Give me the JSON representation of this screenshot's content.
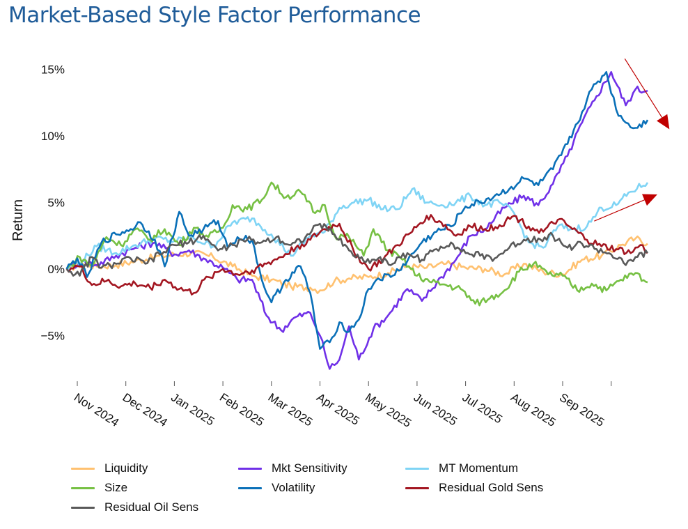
{
  "chart_data": {
    "type": "line",
    "title": "Market-Based Style Factor Performance",
    "xlabel": "",
    "ylabel": "Return",
    "ylim": [
      -8.5,
      16
    ],
    "yticks": [
      15,
      10,
      5,
      0,
      -5
    ],
    "ytick_labels": [
      "15%",
      "10%",
      "5%",
      "0%",
      "−5%"
    ],
    "xtick_labels": [
      "Nov 2024",
      "Dec 2024",
      "Jan 2025",
      "Feb 2025",
      "Mar 2025",
      "Apr 2025",
      "May 2025",
      "Jun 2025",
      "Jul 2025",
      "Aug 2025",
      "Sep 2025",
      ""
    ],
    "x_unit": "months since Nov 1 2024",
    "xlim": [
      -0.22,
      11.75
    ],
    "grid": false,
    "legend_position": "bottom",
    "series": [
      {
        "name": "Liquidity",
        "color": "#ffc170",
        "x": [
          -0.22,
          0.1,
          0.4,
          0.8,
          1.2,
          1.6,
          2.0,
          2.4,
          2.8,
          3.2,
          3.6,
          4.0,
          4.4,
          4.8,
          5.0,
          5.3,
          5.6,
          6.0,
          6.4,
          6.8,
          7.2,
          7.6,
          8.0,
          8.4,
          8.8,
          9.2,
          9.6,
          10.0,
          10.4,
          10.8,
          11.2,
          11.5,
          11.75
        ],
        "values": [
          0,
          0.4,
          0.2,
          0.3,
          0.6,
          0.9,
          1.1,
          1.2,
          0.9,
          0.2,
          -0.5,
          -0.8,
          -1.3,
          -1.4,
          -1.6,
          -0.9,
          -0.7,
          -0.6,
          -0.3,
          0.2,
          0.1,
          0.4,
          0.1,
          0.0,
          -0.4,
          0.4,
          -0.2,
          -0.4,
          0.7,
          1.0,
          1.8,
          2.3,
          1.9
        ]
      },
      {
        "name": "Mkt Sensitivity",
        "color": "#7030e8",
        "x": [
          -0.22,
          0.1,
          0.4,
          0.8,
          1.2,
          1.6,
          2.0,
          2.3,
          2.6,
          3.0,
          3.3,
          3.6,
          3.9,
          4.2,
          4.5,
          4.8,
          5.0,
          5.2,
          5.4,
          5.6,
          5.8,
          6.1,
          6.4,
          6.8,
          7.1,
          7.5,
          7.8,
          8.1,
          8.4,
          8.8,
          9.2,
          9.5,
          9.8,
          10.1,
          10.4,
          10.7,
          11.0,
          11.3,
          11.5,
          11.75
        ],
        "values": [
          0,
          0.6,
          0.3,
          1.0,
          1.6,
          2.0,
          1.1,
          1.4,
          0.8,
          0.1,
          -0.8,
          -0.8,
          -3.5,
          -4.6,
          -3.6,
          -3.3,
          -5.0,
          -7.5,
          -6.8,
          -4.3,
          -6.8,
          -4.5,
          -3.5,
          -1.5,
          -2.4,
          -0.6,
          0.7,
          2.5,
          3.0,
          4.6,
          5.5,
          4.8,
          6.4,
          8.5,
          11.0,
          13.0,
          14.8,
          12.3,
          13.5,
          13.4
        ]
      },
      {
        "name": "MT Momentum",
        "color": "#7fd4f5",
        "x": [
          -0.22,
          0.1,
          0.4,
          0.8,
          1.2,
          1.6,
          2.0,
          2.4,
          2.8,
          3.2,
          3.6,
          4.0,
          4.4,
          4.8,
          5.1,
          5.4,
          5.7,
          6.0,
          6.3,
          6.6,
          6.9,
          7.2,
          7.5,
          7.8,
          8.1,
          8.4,
          8.7,
          9.0,
          9.3,
          9.6,
          9.9,
          10.2,
          10.5,
          10.8,
          11.1,
          11.4,
          11.75
        ],
        "values": [
          0,
          0.6,
          1.7,
          1.2,
          1.8,
          2.3,
          2.1,
          2.3,
          1.7,
          3.5,
          3.8,
          2.6,
          1.0,
          2.5,
          2.8,
          4.6,
          5.0,
          5.2,
          4.5,
          4.5,
          6.0,
          5.0,
          4.8,
          5.0,
          5.5,
          4.8,
          5.0,
          4.2,
          2.0,
          1.6,
          3.2,
          3.0,
          3.2,
          4.6,
          4.8,
          5.8,
          6.5
        ]
      },
      {
        "name": "Size",
        "color": "#76c043",
        "x": [
          -0.22,
          0.05,
          0.3,
          0.6,
          0.9,
          1.2,
          1.5,
          1.8,
          2.1,
          2.4,
          2.7,
          3.0,
          3.2,
          3.5,
          3.8,
          4.0,
          4.3,
          4.6,
          4.9,
          5.1,
          5.3,
          5.6,
          5.9,
          6.1,
          6.4,
          6.7,
          7.0,
          7.3,
          7.6,
          7.9,
          8.2,
          8.5,
          8.8,
          9.1,
          9.4,
          9.7,
          10.0,
          10.3,
          10.6,
          10.9,
          11.2,
          11.5,
          11.75
        ],
        "values": [
          0,
          0.9,
          0.2,
          2.4,
          1.8,
          3.0,
          2.2,
          3.0,
          1.8,
          3.1,
          2.4,
          3.1,
          4.8,
          4.5,
          5.2,
          6.5,
          5.4,
          5.8,
          4.2,
          4.8,
          2.5,
          2.4,
          1.0,
          3.0,
          1.4,
          0.7,
          -0.5,
          -1.0,
          -1.2,
          -1.5,
          -2.6,
          -2.2,
          -1.6,
          -0.2,
          0.4,
          -0.4,
          -0.5,
          -1.6,
          -1.1,
          -1.6,
          -0.8,
          -0.3,
          -1.0
        ]
      },
      {
        "name": "Volatility",
        "color": "#0a70b8",
        "x": [
          -0.22,
          0.0,
          0.2,
          0.5,
          0.8,
          1.1,
          1.3,
          1.6,
          1.8,
          2.1,
          2.3,
          2.6,
          2.9,
          3.1,
          3.3,
          3.6,
          3.8,
          4.0,
          4.3,
          4.6,
          4.8,
          5.0,
          5.2,
          5.4,
          5.6,
          5.8,
          6.0,
          6.2,
          6.5,
          6.8,
          7.1,
          7.4,
          7.7,
          8.0,
          8.3,
          8.6,
          8.9,
          9.2,
          9.5,
          9.8,
          10.1,
          10.4,
          10.6,
          10.9,
          11.1,
          11.3,
          11.5,
          11.75
        ],
        "values": [
          0,
          0.8,
          -0.6,
          2.0,
          2.6,
          3.0,
          3.5,
          2.2,
          0.2,
          4.3,
          2.5,
          3.0,
          3.6,
          1.6,
          2.4,
          2.2,
          -0.8,
          -2.5,
          -0.8,
          0.2,
          -1.8,
          -6.0,
          -5.5,
          -4.0,
          -4.7,
          -3.8,
          -1.5,
          -0.7,
          -0.5,
          0.6,
          2.0,
          2.8,
          3.2,
          4.7,
          5.0,
          5.5,
          6.0,
          6.8,
          6.3,
          7.5,
          9.4,
          11.8,
          13.5,
          14.8,
          12.0,
          11.0,
          10.6,
          11.2
        ]
      },
      {
        "name": "Residual Gold Sens",
        "color": "#a31621",
        "x": [
          -0.22,
          0.05,
          0.3,
          0.6,
          0.9,
          1.2,
          1.5,
          1.8,
          2.1,
          2.4,
          2.7,
          3.0,
          3.3,
          3.6,
          3.9,
          4.2,
          4.5,
          4.8,
          5.1,
          5.4,
          5.7,
          6.0,
          6.3,
          6.6,
          6.9,
          7.2,
          7.5,
          7.8,
          8.1,
          8.4,
          8.7,
          9.0,
          9.3,
          9.6,
          9.9,
          10.2,
          10.5,
          10.8,
          11.1,
          11.4,
          11.6,
          11.75
        ],
        "values": [
          0,
          0.2,
          -1.2,
          -0.9,
          -1.3,
          -1.1,
          -1.4,
          -0.8,
          -1.5,
          -1.8,
          -0.6,
          0.0,
          -0.4,
          -0.1,
          0.4,
          0.9,
          1.6,
          2.2,
          3.0,
          3.4,
          1.3,
          0.0,
          0.7,
          1.8,
          2.8,
          4.0,
          3.5,
          2.5,
          3.2,
          3.0,
          3.3,
          4.0,
          3.2,
          2.8,
          3.7,
          3.0,
          2.2,
          1.7,
          1.5,
          1.2,
          1.8,
          1.2
        ]
      },
      {
        "name": "Residual Oil Sens",
        "color": "#595959",
        "x": [
          -0.22,
          0.05,
          0.3,
          0.5,
          0.8,
          1.1,
          1.4,
          1.7,
          2.0,
          2.3,
          2.6,
          2.9,
          3.2,
          3.5,
          3.8,
          4.1,
          4.4,
          4.7,
          5.0,
          5.3,
          5.6,
          5.9,
          6.2,
          6.5,
          6.8,
          7.1,
          7.4,
          7.7,
          8.0,
          8.3,
          8.6,
          8.9,
          9.2,
          9.5,
          9.8,
          10.1,
          10.4,
          10.7,
          11.0,
          11.3,
          11.5,
          11.75
        ],
        "values": [
          0,
          -0.5,
          0.9,
          0.1,
          0.4,
          0.8,
          0.4,
          1.1,
          1.8,
          2.0,
          2.5,
          1.4,
          1.8,
          2.2,
          2.0,
          2.4,
          1.8,
          2.4,
          3.4,
          2.6,
          1.4,
          0.6,
          0.8,
          0.4,
          1.2,
          0.7,
          1.5,
          2.0,
          1.2,
          1.0,
          0.8,
          1.6,
          2.2,
          2.3,
          2.5,
          1.6,
          1.9,
          1.5,
          1.1,
          0.3,
          0.9,
          1.2
        ]
      }
    ],
    "annotations": [
      {
        "type": "arrow",
        "color": "#c00000",
        "from": [
          11.28,
          15.8
        ],
        "to": [
          12.2,
          10.5
        ],
        "meaning": "downward trend after peak"
      },
      {
        "type": "arrow",
        "color": "#c00000",
        "from": [
          10.65,
          3.6
        ],
        "to": [
          11.95,
          5.6
        ],
        "meaning": "upward trend"
      }
    ]
  },
  "legend": {
    "items": [
      {
        "label": "Liquidity",
        "color": "#ffc170"
      },
      {
        "label": "Mkt Sensitivity",
        "color": "#7030e8"
      },
      {
        "label": "MT Momentum",
        "color": "#7fd4f5"
      },
      {
        "label": "Size",
        "color": "#76c043"
      },
      {
        "label": "Volatility",
        "color": "#0a70b8"
      },
      {
        "label": "Residual Gold Sens",
        "color": "#a31621"
      },
      {
        "label": "Residual Oil Sens",
        "color": "#595959"
      }
    ]
  }
}
